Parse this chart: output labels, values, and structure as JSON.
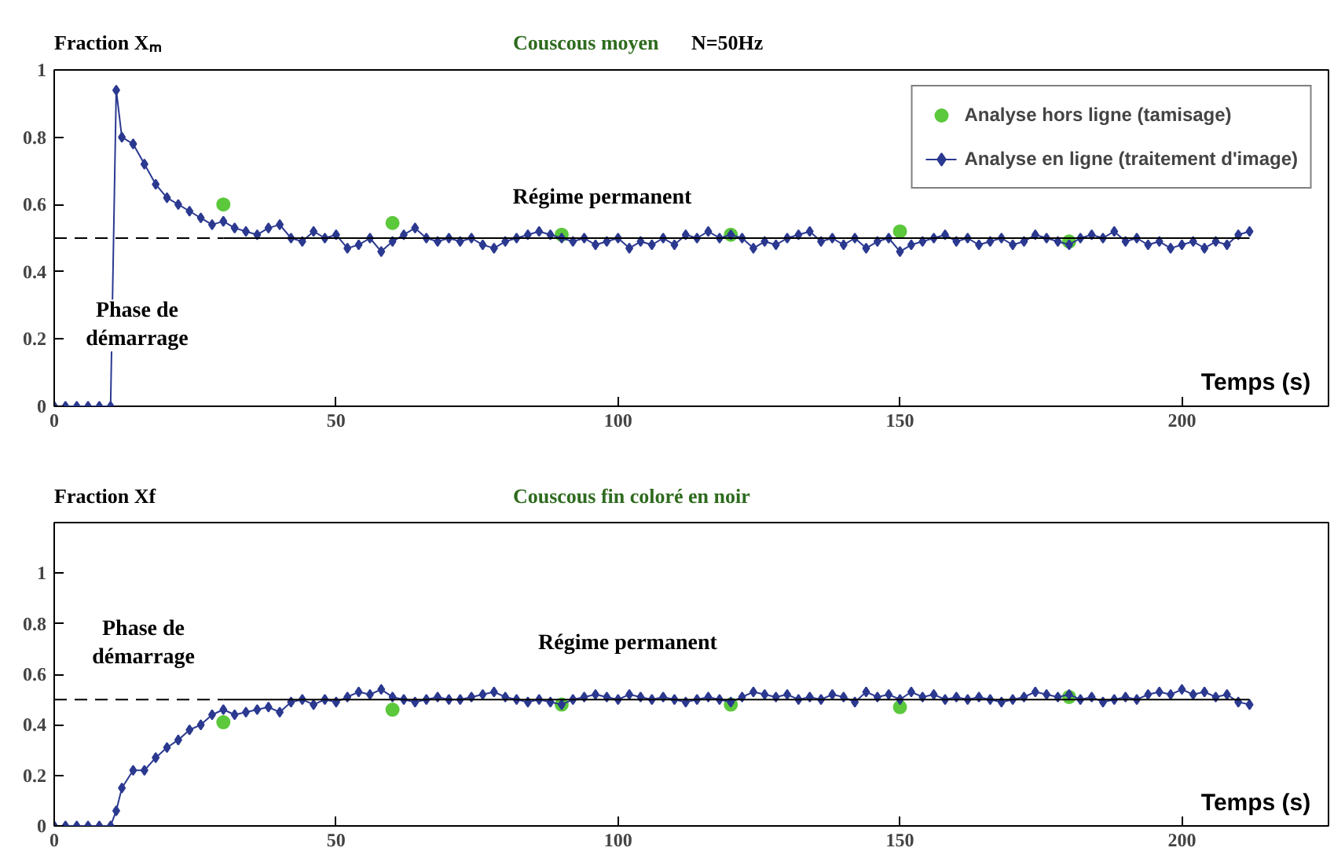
{
  "chart_data": [
    {
      "type": "line",
      "title": "Couscous moyen",
      "subtitle": "N=50Hz",
      "ylabel": "Fraction Xₘ",
      "xlabel": "Temps (s)",
      "xlim": [
        0,
        226
      ],
      "ylim": [
        0,
        1
      ],
      "xticks": [
        0,
        50,
        100,
        150,
        200
      ],
      "yticks": [
        0,
        0.2,
        0.4,
        0.6,
        0.8,
        1
      ],
      "grid": false,
      "legend": "top right",
      "annotations": [
        "Phase de\ndémarrage",
        "Régime permanent"
      ],
      "series": [
        {
          "name": "Analyse en ligne (traitement d'image)",
          "marker": "diamond",
          "color": "#2b3990",
          "x": [
            0,
            2,
            4,
            6,
            8,
            10,
            11,
            12,
            14,
            16,
            18,
            20,
            22,
            24,
            26,
            28,
            30,
            32,
            34,
            36,
            38,
            40,
            42,
            44,
            46,
            48,
            50,
            52,
            54,
            56,
            58,
            60,
            62,
            64,
            66,
            68,
            70,
            72,
            74,
            76,
            78,
            80,
            82,
            84,
            86,
            88,
            90,
            92,
            94,
            96,
            98,
            100,
            102,
            104,
            106,
            108,
            110,
            112,
            114,
            116,
            118,
            120,
            122,
            124,
            126,
            128,
            130,
            132,
            134,
            136,
            138,
            140,
            142,
            144,
            146,
            148,
            150,
            152,
            154,
            156,
            158,
            160,
            162,
            164,
            166,
            168,
            170,
            172,
            174,
            176,
            178,
            180,
            182,
            184,
            186,
            188,
            190,
            192,
            194,
            196,
            198,
            200,
            202,
            204,
            206,
            208,
            210,
            212
          ],
          "values": [
            0,
            0,
            0,
            0,
            0,
            0,
            0.94,
            0.8,
            0.78,
            0.72,
            0.66,
            0.62,
            0.6,
            0.58,
            0.56,
            0.54,
            0.55,
            0.53,
            0.52,
            0.51,
            0.53,
            0.54,
            0.5,
            0.49,
            0.52,
            0.5,
            0.51,
            0.47,
            0.48,
            0.5,
            0.46,
            0.49,
            0.51,
            0.53,
            0.5,
            0.49,
            0.5,
            0.49,
            0.5,
            0.48,
            0.47,
            0.49,
            0.5,
            0.51,
            0.52,
            0.51,
            0.5,
            0.49,
            0.5,
            0.48,
            0.49,
            0.5,
            0.47,
            0.49,
            0.48,
            0.5,
            0.48,
            0.51,
            0.5,
            0.52,
            0.5,
            0.51,
            0.5,
            0.47,
            0.49,
            0.48,
            0.5,
            0.51,
            0.52,
            0.49,
            0.5,
            0.48,
            0.5,
            0.47,
            0.49,
            0.5,
            0.46,
            0.48,
            0.49,
            0.5,
            0.51,
            0.49,
            0.5,
            0.48,
            0.49,
            0.5,
            0.48,
            0.49,
            0.51,
            0.5,
            0.49,
            0.48,
            0.5,
            0.51,
            0.5,
            0.52,
            0.49,
            0.5,
            0.48,
            0.49,
            0.47,
            0.48,
            0.49,
            0.47,
            0.49,
            0.48,
            0.51,
            0.52
          ]
        },
        {
          "name": "Analyse hors ligne (tamisage)",
          "type": "scatter",
          "marker": "circle",
          "color": "#5cc83c",
          "x": [
            30,
            60,
            90,
            120,
            150,
            180
          ],
          "values": [
            0.6,
            0.545,
            0.51,
            0.51,
            0.52,
            0.49
          ]
        },
        {
          "type": "line",
          "marker": "none",
          "line_style": "dashed",
          "color": "#000000",
          "x": [
            0,
            30
          ],
          "values": [
            0.5,
            0.5
          ]
        },
        {
          "type": "line",
          "marker": "none",
          "line_style": "solid",
          "color": "#000000",
          "x": [
            30,
            212
          ],
          "values": [
            0.5,
            0.5
          ]
        }
      ]
    },
    {
      "type": "line",
      "title": "Couscous fin coloré en noir",
      "ylabel": "Fraction Xf",
      "xlabel": "Temps (s)",
      "xlim": [
        0,
        226
      ],
      "ylim": [
        0,
        1.2
      ],
      "xticks": [
        0,
        50,
        100,
        150,
        200
      ],
      "yticks": [
        0,
        0.2,
        0.4,
        0.6,
        0.8,
        1
      ],
      "grid": false,
      "annotations": [
        "Phase de\ndémarrage",
        "Régime permanent"
      ],
      "series": [
        {
          "marker": "diamond",
          "color": "#2b3990",
          "x": [
            0,
            2,
            4,
            6,
            8,
            10,
            11,
            12,
            14,
            16,
            18,
            20,
            22,
            24,
            26,
            28,
            30,
            32,
            34,
            36,
            38,
            40,
            42,
            44,
            46,
            48,
            50,
            52,
            54,
            56,
            58,
            60,
            62,
            64,
            66,
            68,
            70,
            72,
            74,
            76,
            78,
            80,
            82,
            84,
            86,
            88,
            90,
            92,
            94,
            96,
            98,
            100,
            102,
            104,
            106,
            108,
            110,
            112,
            114,
            116,
            118,
            120,
            122,
            124,
            126,
            128,
            130,
            132,
            134,
            136,
            138,
            140,
            142,
            144,
            146,
            148,
            150,
            152,
            154,
            156,
            158,
            160,
            162,
            164,
            166,
            168,
            170,
            172,
            174,
            176,
            178,
            180,
            182,
            184,
            186,
            188,
            190,
            192,
            194,
            196,
            198,
            200,
            202,
            204,
            206,
            208,
            210,
            212
          ],
          "values": [
            0,
            0,
            0,
            0,
            0,
            0,
            0.06,
            0.15,
            0.22,
            0.22,
            0.27,
            0.31,
            0.34,
            0.38,
            0.4,
            0.44,
            0.46,
            0.44,
            0.45,
            0.46,
            0.47,
            0.45,
            0.49,
            0.5,
            0.48,
            0.5,
            0.49,
            0.51,
            0.53,
            0.52,
            0.54,
            0.51,
            0.5,
            0.49,
            0.5,
            0.51,
            0.5,
            0.5,
            0.51,
            0.52,
            0.53,
            0.51,
            0.5,
            0.49,
            0.5,
            0.49,
            0.48,
            0.5,
            0.51,
            0.52,
            0.51,
            0.5,
            0.52,
            0.51,
            0.5,
            0.51,
            0.5,
            0.49,
            0.5,
            0.51,
            0.5,
            0.49,
            0.51,
            0.53,
            0.52,
            0.51,
            0.52,
            0.5,
            0.51,
            0.5,
            0.52,
            0.51,
            0.49,
            0.53,
            0.51,
            0.52,
            0.5,
            0.53,
            0.51,
            0.52,
            0.5,
            0.51,
            0.5,
            0.51,
            0.5,
            0.49,
            0.5,
            0.51,
            0.53,
            0.52,
            0.51,
            0.52,
            0.5,
            0.51,
            0.49,
            0.5,
            0.51,
            0.5,
            0.52,
            0.53,
            0.52,
            0.54,
            0.52,
            0.53,
            0.51,
            0.52,
            0.49,
            0.48
          ]
        },
        {
          "type": "scatter",
          "marker": "circle",
          "color": "#5cc83c",
          "x": [
            30,
            60,
            90,
            120,
            150,
            180
          ],
          "values": [
            0.41,
            0.46,
            0.48,
            0.48,
            0.47,
            0.51
          ]
        },
        {
          "type": "line",
          "marker": "none",
          "line_style": "dashed",
          "color": "#000000",
          "x": [
            0,
            30
          ],
          "values": [
            0.5,
            0.5
          ]
        },
        {
          "type": "line",
          "marker": "none",
          "line_style": "solid",
          "color": "#000000",
          "x": [
            30,
            212
          ],
          "values": [
            0.5,
            0.5
          ]
        }
      ]
    }
  ]
}
